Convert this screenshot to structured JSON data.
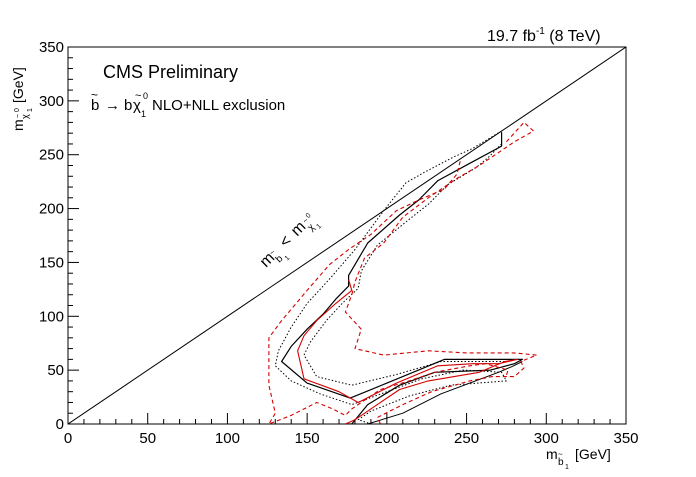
{
  "header": {
    "lumi": "19.7 fb",
    "lumi_exp": "-1",
    "energy": " (8 TeV)",
    "cms_label": "CMS Preliminary",
    "process_label": "NLO+NLL exclusion",
    "diag_label": "<"
  },
  "chart_data": {
    "type": "line",
    "xlabel": "[GeV]",
    "ylabel": "[GeV]",
    "xlim": [
      0,
      350
    ],
    "ylim": [
      0,
      350
    ],
    "xticks": [
      0,
      50,
      100,
      150,
      200,
      250,
      300,
      350
    ],
    "yticks": [
      0,
      50,
      100,
      150,
      200,
      250,
      300,
      350
    ],
    "grid": false,
    "series": [
      {
        "color": "#000000",
        "dash": "solid",
        "width": 1,
        "points": [
          [
            0,
            0
          ],
          [
            350,
            350
          ]
        ]
      },
      {
        "color": "#000000",
        "dash": "solid",
        "width": 1.2,
        "points": [
          [
            272,
            271
          ],
          [
            272,
            258
          ],
          [
            252,
            242
          ],
          [
            232,
            226
          ],
          [
            220,
            208
          ],
          [
            208,
            194
          ],
          [
            188,
            168
          ],
          [
            176,
            138
          ],
          [
            176,
            128
          ],
          [
            168,
            116
          ],
          [
            160,
            102
          ],
          [
            150,
            88
          ],
          [
            140,
            72
          ],
          [
            134,
            58
          ],
          [
            150,
            38
          ],
          [
            177,
            24
          ],
          [
            200,
            38
          ],
          [
            236,
            60
          ],
          [
            272,
            60
          ],
          [
            285,
            60
          ],
          [
            280,
            56
          ],
          [
            265,
            50
          ],
          [
            230,
            48
          ],
          [
            208,
            36
          ],
          [
            188,
            18
          ],
          [
            178,
            0
          ],
          [
            174,
            0
          ],
          [
            178,
            0
          ]
        ]
      },
      {
        "color": "#000000",
        "dash": "solid",
        "width": 1,
        "points": [
          [
            188,
            0
          ],
          [
            210,
            10
          ],
          [
            234,
            28
          ],
          [
            270,
            48
          ],
          [
            278,
            53
          ],
          [
            285,
            58
          ]
        ]
      },
      {
        "color": "#000000",
        "dash": "dotted",
        "width": 1,
        "points": [
          [
            272,
            260
          ],
          [
            264,
            248
          ],
          [
            256,
            238
          ],
          [
            238,
            222
          ],
          [
            226,
            204
          ],
          [
            214,
            190
          ],
          [
            194,
            166
          ],
          [
            184,
            142
          ],
          [
            182,
            126
          ],
          [
            172,
            112
          ],
          [
            162,
            96
          ],
          [
            152,
            76
          ],
          [
            148,
            64
          ],
          [
            156,
            44
          ],
          [
            178,
            36
          ],
          [
            206,
            46
          ],
          [
            234,
            58
          ],
          [
            274,
            58
          ]
        ]
      },
      {
        "color": "#000000",
        "dash": "dotted",
        "width": 1,
        "points": [
          [
            272,
            272
          ],
          [
            254,
            256
          ],
          [
            242,
            248
          ],
          [
            224,
            234
          ],
          [
            212,
            224
          ],
          [
            198,
            198
          ],
          [
            180,
            162
          ],
          [
            166,
            138
          ],
          [
            160,
            128
          ],
          [
            150,
            112
          ],
          [
            140,
            90
          ],
          [
            132,
            68
          ],
          [
            130,
            54
          ],
          [
            140,
            40
          ],
          [
            158,
            28
          ],
          [
            178,
            18
          ],
          [
            200,
            30
          ],
          [
            222,
            42
          ],
          [
            248,
            50
          ],
          [
            272,
            48
          ],
          [
            275,
            40
          ],
          [
            240,
            36
          ],
          [
            214,
            26
          ],
          [
            190,
            12
          ],
          [
            182,
            4
          ],
          [
            190,
            0
          ]
        ]
      },
      {
        "color": "#d40000",
        "dash": "solid",
        "width": 1.1,
        "points": [
          [
            176,
            134
          ],
          [
            178,
            124
          ],
          [
            168,
            112
          ],
          [
            156,
            96
          ],
          [
            148,
            82
          ],
          [
            144,
            68
          ],
          [
            148,
            42
          ],
          [
            170,
            30
          ],
          [
            182,
            20
          ],
          [
            206,
            38
          ],
          [
            232,
            54
          ],
          [
            254,
            56
          ],
          [
            270,
            56
          ],
          [
            282,
            60
          ],
          [
            274,
            58
          ],
          [
            258,
            48
          ],
          [
            226,
            40
          ],
          [
            208,
            32
          ],
          [
            190,
            14
          ],
          [
            180,
            4
          ],
          [
            174,
            0
          ]
        ]
      },
      {
        "color": "#d40000",
        "dash": "dashed",
        "width": 1.1,
        "points": [
          [
            275,
            262
          ],
          [
            286,
            280
          ],
          [
            292,
            272
          ],
          [
            280,
            262
          ],
          [
            258,
            240
          ],
          [
            244,
            228
          ],
          [
            226,
            210
          ],
          [
            210,
            192
          ],
          [
            198,
            168
          ],
          [
            186,
            154
          ],
          [
            180,
            132
          ],
          [
            178,
            120
          ],
          [
            174,
            104
          ],
          [
            184,
            88
          ],
          [
            180,
            70
          ],
          [
            198,
            64
          ],
          [
            226,
            68
          ],
          [
            250,
            66
          ],
          [
            280,
            66
          ],
          [
            294,
            64
          ],
          [
            284,
            58
          ],
          [
            286,
            52
          ],
          [
            280,
            44
          ],
          [
            266,
            44
          ],
          [
            252,
            40
          ],
          [
            228,
            30
          ],
          [
            210,
            18
          ],
          [
            194,
            6
          ],
          [
            196,
            0
          ]
        ]
      },
      {
        "color": "#d40000",
        "dash": "dashed",
        "width": 1.1,
        "points": [
          [
            246,
            244
          ],
          [
            244,
            232
          ],
          [
            236,
            218
          ],
          [
            220,
            208
          ],
          [
            206,
            198
          ],
          [
            190,
            176
          ],
          [
            176,
            162
          ],
          [
            164,
            148
          ],
          [
            150,
            124
          ],
          [
            142,
            110
          ],
          [
            134,
            96
          ],
          [
            126,
            80
          ],
          [
            126,
            60
          ],
          [
            126,
            36
          ],
          [
            130,
            10
          ],
          [
            126,
            0
          ],
          [
            140,
            8
          ],
          [
            156,
            20
          ],
          [
            166,
            14
          ],
          [
            174,
            8
          ],
          [
            178,
            14
          ],
          [
            186,
            22
          ],
          [
            196,
            32
          ],
          [
            214,
            40
          ],
          [
            230,
            48
          ],
          [
            252,
            54
          ],
          [
            262,
            56
          ],
          [
            276,
            50
          ],
          [
            275,
            45
          ]
        ]
      }
    ]
  }
}
